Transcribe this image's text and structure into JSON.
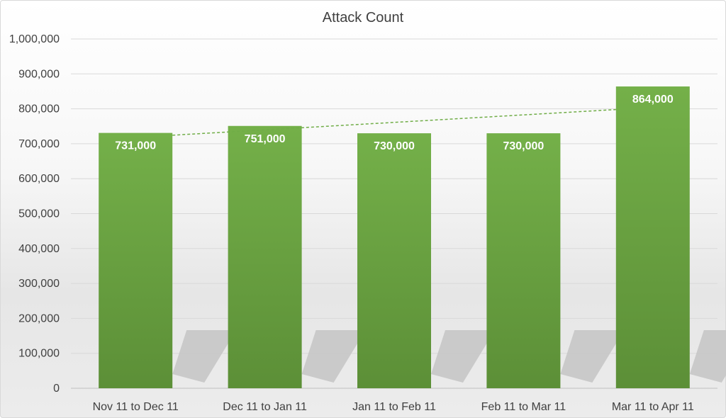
{
  "chart_data": {
    "type": "bar",
    "title": "Attack Count",
    "xlabel": "",
    "ylabel": "",
    "categories": [
      "Nov 11 to Dec 11",
      "Dec 11 to Jan 11",
      "Jan 11 to Feb 11",
      "Feb 11 to Mar 11",
      "Mar 11 to Apr 11"
    ],
    "values": [
      731000,
      751000,
      730000,
      730000,
      864000
    ],
    "data_labels": [
      "731,000",
      "751,000",
      "730,000",
      "730,000",
      "864,000"
    ],
    "ylim": [
      0,
      1000000
    ],
    "yticks": [
      0,
      100000,
      200000,
      300000,
      400000,
      500000,
      600000,
      700000,
      800000,
      900000,
      1000000
    ],
    "ytick_labels": [
      "0",
      "100,000",
      "200,000",
      "300,000",
      "400,000",
      "500,000",
      "600,000",
      "700,000",
      "800,000",
      "900,000",
      "1,000,000"
    ],
    "grid": true,
    "legend": "none",
    "trendline": {
      "type": "linear",
      "style": "dashed",
      "color": "#70ad47"
    },
    "colors": {
      "bar": "#70ad47",
      "bar_dark": "#5e9338",
      "grid": "#d9d9d9",
      "text": "#404040"
    }
  }
}
